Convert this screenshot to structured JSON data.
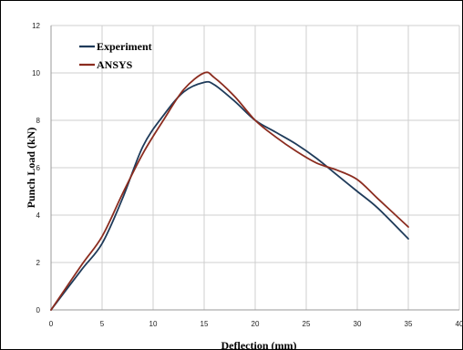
{
  "chart_data": {
    "type": "line",
    "title": "",
    "xlabel": "Deflection (mm)",
    "ylabel": "Punch Load (kN)",
    "xlim": [
      0,
      40
    ],
    "ylim": [
      0,
      12
    ],
    "xticks": [
      0,
      5,
      10,
      15,
      20,
      25,
      30,
      35,
      40
    ],
    "yticks": [
      0,
      2,
      4,
      6,
      8,
      10,
      12
    ],
    "grid": true,
    "legend_position": "top-left",
    "series": [
      {
        "name": "Experiment",
        "color": "#1f3b5a",
        "x": [
          0,
          3,
          5,
          7,
          9,
          11,
          13,
          15,
          16,
          18,
          20,
          22,
          24,
          26,
          28,
          30,
          32,
          35
        ],
        "y": [
          0,
          1.7,
          2.8,
          4.7,
          6.9,
          8.2,
          9.2,
          9.6,
          9.5,
          8.8,
          8.0,
          7.5,
          7.0,
          6.4,
          5.7,
          5.0,
          4.3,
          3.0
        ]
      },
      {
        "name": "ANSYS",
        "color": "#8b2c1f",
        "x": [
          0,
          3,
          5,
          7,
          9,
          11,
          13,
          15,
          16,
          18,
          20,
          22,
          24,
          26,
          28,
          30,
          32,
          35
        ],
        "y": [
          0,
          1.9,
          3.1,
          4.9,
          6.6,
          8.0,
          9.3,
          10.0,
          9.8,
          9.0,
          8.0,
          7.3,
          6.7,
          6.2,
          5.9,
          5.5,
          4.7,
          3.5
        ]
      }
    ]
  }
}
